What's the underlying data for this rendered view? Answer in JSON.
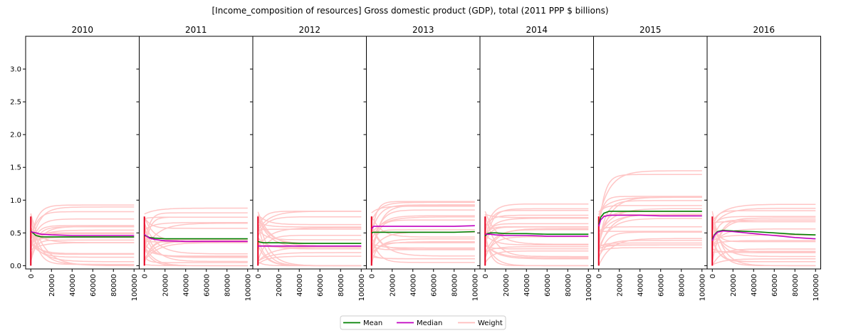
{
  "chart_data": {
    "type": "line",
    "title": "[Income_composition of resources] Gross domestic product (GDP), total (2011 PPP $ billions)",
    "panels": [
      "2010",
      "2011",
      "2012",
      "2013",
      "2014",
      "2015",
      "2016"
    ],
    "x_ticks": [
      "0",
      "20000",
      "40000",
      "60000",
      "80000",
      "100000"
    ],
    "xlim": [
      -5000,
      105000
    ],
    "y_ticks": [
      "0.0",
      "0.5",
      "1.0",
      "1.5",
      "2.0",
      "2.5",
      "3.0"
    ],
    "ylim": [
      -0.05,
      3.5
    ],
    "x": [
      0,
      2000,
      5000,
      10000,
      20000,
      40000,
      60000,
      80000,
      100000
    ],
    "colors": {
      "mean": "#008000",
      "median": "#c000c0",
      "weight": "#ff6b6b"
    },
    "legend": {
      "placement": "bottom-center",
      "items": [
        "Mean",
        "Median",
        "Weight"
      ]
    },
    "series": [
      {
        "name": "Mean",
        "panels": [
          [
            0.53,
            0.5,
            0.46,
            0.44,
            0.44,
            0.44,
            0.44,
            0.44,
            0.44
          ],
          [
            0.46,
            0.45,
            0.43,
            0.42,
            0.41,
            0.41,
            0.41,
            0.41,
            0.41
          ],
          [
            0.37,
            0.36,
            0.35,
            0.35,
            0.35,
            0.34,
            0.34,
            0.34,
            0.34
          ],
          [
            0.5,
            0.51,
            0.51,
            0.51,
            0.51,
            0.51,
            0.51,
            0.51,
            0.52
          ],
          [
            0.45,
            0.49,
            0.5,
            0.5,
            0.49,
            0.49,
            0.48,
            0.48,
            0.48
          ],
          [
            0.63,
            0.74,
            0.8,
            0.83,
            0.83,
            0.83,
            0.83,
            0.83,
            0.83
          ],
          [
            0.4,
            0.47,
            0.52,
            0.54,
            0.53,
            0.52,
            0.5,
            0.48,
            0.47
          ]
        ]
      },
      {
        "name": "Median",
        "panels": [
          [
            0.52,
            0.51,
            0.5,
            0.48,
            0.47,
            0.46,
            0.46,
            0.46,
            0.46
          ],
          [
            0.48,
            0.45,
            0.42,
            0.4,
            0.38,
            0.37,
            0.37,
            0.37,
            0.37
          ],
          [
            0.3,
            0.3,
            0.3,
            0.3,
            0.3,
            0.3,
            0.3,
            0.3,
            0.3
          ],
          [
            0.56,
            0.6,
            0.6,
            0.6,
            0.6,
            0.6,
            0.6,
            0.6,
            0.61
          ],
          [
            0.48,
            0.48,
            0.48,
            0.47,
            0.46,
            0.46,
            0.45,
            0.45,
            0.45
          ],
          [
            0.6,
            0.7,
            0.75,
            0.77,
            0.77,
            0.77,
            0.76,
            0.76,
            0.76
          ],
          [
            0.38,
            0.46,
            0.51,
            0.53,
            0.52,
            0.49,
            0.46,
            0.43,
            0.41
          ]
        ]
      }
    ]
  }
}
